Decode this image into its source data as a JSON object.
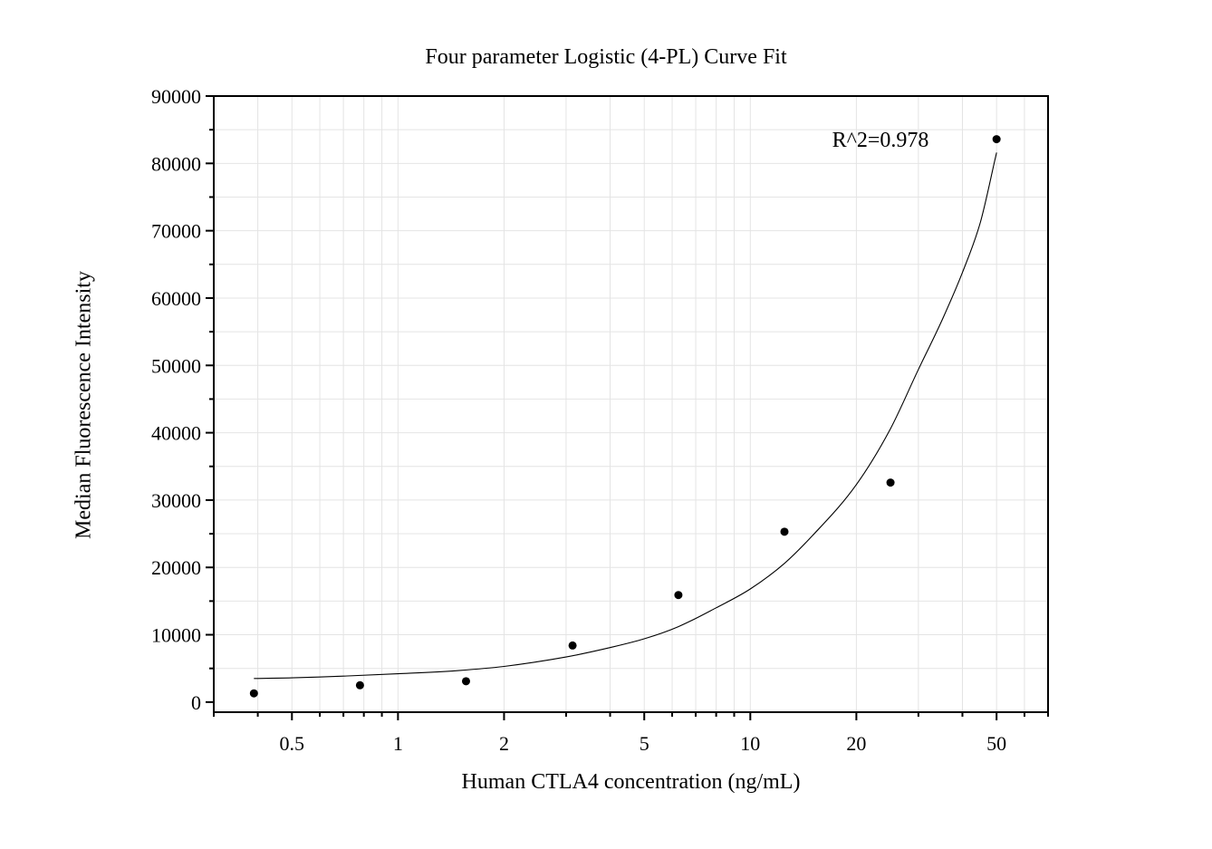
{
  "chart_data": {
    "type": "scatter",
    "title": "Four parameter Logistic (4-PL) Curve Fit",
    "xlabel": "Human CTLA4 concentration (ng/mL)",
    "ylabel": "Median Fluorescence Intensity",
    "x_scale": "log",
    "xlim": [
      0.3,
      70
    ],
    "ylim": [
      -1500,
      90000
    ],
    "x_ticks": [
      0.5,
      1,
      2,
      5,
      10,
      20,
      50
    ],
    "x_tick_labels": [
      "0.5",
      "1",
      "2",
      "5",
      "10",
      "20",
      "50"
    ],
    "y_ticks": [
      0,
      10000,
      20000,
      30000,
      40000,
      50000,
      60000,
      70000,
      80000,
      90000
    ],
    "y_tick_labels": [
      "0",
      "10000",
      "20000",
      "30000",
      "40000",
      "50000",
      "60000",
      "70000",
      "80000",
      "90000"
    ],
    "grid": true,
    "series": [
      {
        "x": [
          0.39,
          0.78,
          1.56,
          3.13,
          6.25,
          12.5,
          25,
          50
        ],
        "y": [
          1300,
          2500,
          3100,
          8400,
          15900,
          25300,
          32600,
          83600
        ],
        "color": "#000000"
      }
    ],
    "fit_curve": {
      "x": [
        0.39,
        0.5,
        0.7,
        1,
        1.5,
        2,
        3,
        4,
        5,
        6.25,
        8,
        10,
        12.5,
        15,
        20,
        25,
        30,
        35,
        40,
        45,
        50
      ],
      "y": [
        3500,
        3600,
        3850,
        4200,
        4700,
        5300,
        6700,
        8100,
        9400,
        11200,
        14000,
        16800,
        20600,
        24700,
        32300,
        40600,
        49400,
        56700,
        63800,
        71300,
        81600
      ],
      "color": "#000000"
    },
    "annotation": "R^2=0.978"
  }
}
